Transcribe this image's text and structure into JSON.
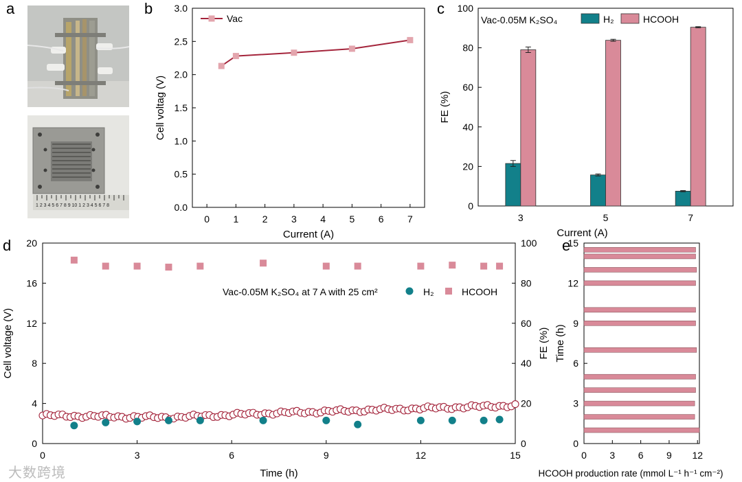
{
  "panel_labels": {
    "a": "a",
    "b": "b",
    "c": "c",
    "d": "d",
    "e": "e"
  },
  "ruler_text": "1 2 3 4 5 6 7 8 9 10 1 2 3 4 5 6 7 8",
  "watermark": "大数跨境",
  "colors": {
    "vac": "#a4243b",
    "marker": "#e3a5ad",
    "h2": "#12808a",
    "hcooh": "#d98a99",
    "hcooh_edge": "#7a4a4f"
  },
  "chart_data": [
    {
      "id": "b",
      "type": "line",
      "title": "",
      "xlabel": "Current (A)",
      "ylabel": "Cell voltag (V)",
      "xlim": [
        -0.5,
        7.5
      ],
      "ylim": [
        0,
        3.0
      ],
      "xticks": [
        "0",
        "1",
        "2",
        "3",
        "4",
        "5",
        "6",
        "7"
      ],
      "yticks": [
        "0.0",
        "0.5",
        "1.0",
        "1.5",
        "2.0",
        "2.5",
        "3.0"
      ],
      "legend": "top-left",
      "series": [
        {
          "name": "Vac",
          "x": [
            0.5,
            1,
            3,
            5,
            7
          ],
          "y": [
            2.13,
            2.28,
            2.33,
            2.39,
            2.52
          ]
        }
      ]
    },
    {
      "id": "c",
      "type": "bar",
      "title": "",
      "xlabel": "Current (A)",
      "ylabel": "FE (%)",
      "ylim": [
        0,
        100
      ],
      "yticks": [
        "0",
        "20",
        "40",
        "60",
        "80",
        "100"
      ],
      "categories": [
        "3",
        "5",
        "7"
      ],
      "legend": "top",
      "annotation": "Vac-0.05M K₂SO₄",
      "series": [
        {
          "name": "H₂",
          "values": [
            21.5,
            15.7,
            7.5
          ],
          "errors": [
            1.5,
            0.5,
            0.3
          ]
        },
        {
          "name": "HCOOH",
          "values": [
            79.0,
            83.8,
            90.4
          ],
          "errors": [
            1.4,
            0.5,
            0.3
          ]
        }
      ]
    },
    {
      "id": "d",
      "type": "scatter",
      "title": "",
      "xlabel": "Time (h)",
      "ylabel_left": "Cell voltage (V)",
      "ylabel_right": "FE (%)",
      "xlim": [
        0,
        15
      ],
      "ylim_left": [
        0,
        20
      ],
      "ylim_right": [
        0,
        100
      ],
      "xticks": [
        "0",
        "3",
        "6",
        "9",
        "12",
        "15"
      ],
      "yticks_left": [
        "0",
        "4",
        "8",
        "12",
        "16",
        "20"
      ],
      "yticks_right": [
        "0",
        "20",
        "40",
        "60",
        "80",
        "100"
      ],
      "legend": "upper-right",
      "annotation": "Vac-0.05M K₂SO₄ at 7 A with 25 cm²",
      "voltage": {
        "t_start": 0,
        "t_end": 15,
        "n": 120,
        "trend": [
          [
            0,
            2.8
          ],
          [
            2,
            2.7
          ],
          [
            4,
            2.6
          ],
          [
            7,
            3.0
          ],
          [
            10,
            3.3
          ],
          [
            12,
            3.5
          ],
          [
            15,
            3.8
          ]
        ]
      },
      "series": [
        {
          "name": "H₂",
          "x": [
            1,
            2,
            3,
            4,
            5,
            7,
            9,
            10,
            12,
            13,
            14,
            14.5
          ],
          "y": [
            9.0,
            10.5,
            11.0,
            11.5,
            11.5,
            11.5,
            11.5,
            9.5,
            11.5,
            11.5,
            11.5,
            12.0
          ]
        },
        {
          "name": "HCOOH",
          "x": [
            1,
            2,
            3,
            4,
            5,
            7,
            9,
            10,
            12,
            13,
            14,
            14.5
          ],
          "y": [
            91.5,
            88.5,
            88.5,
            88.0,
            88.5,
            90.0,
            88.5,
            88.5,
            88.5,
            89.0,
            88.5,
            88.5
          ]
        }
      ]
    },
    {
      "id": "e",
      "type": "bar",
      "orientation": "horizontal",
      "title": "",
      "xlabel": "HCOOH production rate (mmol L⁻¹ h⁻¹ cm⁻²)",
      "ylabel": "Time (h)",
      "xlim": [
        0,
        12.2
      ],
      "ylim": [
        0,
        15
      ],
      "xticks": [
        "0",
        "3",
        "6",
        "9",
        "12"
      ],
      "yticks": [
        "0",
        "3",
        "6",
        "9",
        "12",
        "15"
      ],
      "y": [
        1,
        2,
        3,
        4,
        5,
        7,
        9,
        10,
        12,
        13,
        14,
        14.5
      ],
      "values": [
        12.2,
        11.7,
        11.7,
        11.8,
        11.8,
        11.9,
        11.8,
        11.8,
        11.8,
        11.9,
        11.8,
        11.8
      ]
    }
  ]
}
